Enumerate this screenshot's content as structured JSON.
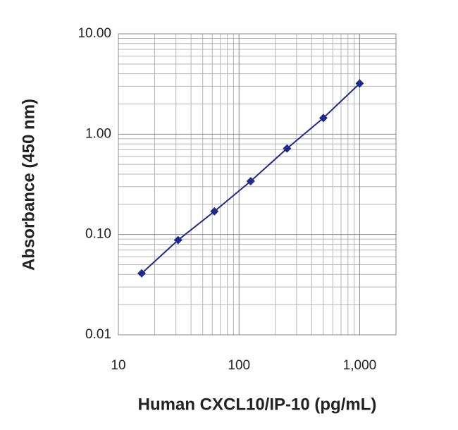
{
  "chart_data": {
    "type": "line",
    "x_label": "Human CXCL10/IP-10 (pg/mL)",
    "y_label": "Absorbance (450 nm)",
    "x": [
      15.6,
      31.25,
      62.5,
      125,
      250,
      500,
      1000
    ],
    "series": [
      {
        "color": "#1f2a8c",
        "values": [
          0.041,
          0.088,
          0.17,
          0.34,
          0.72,
          1.45,
          3.2
        ]
      }
    ],
    "x_log": true,
    "y_log": true,
    "grid": true,
    "minor_grid": true,
    "xlim": [
      10,
      2000
    ],
    "xticks": [
      10,
      100,
      {
        "value": 1000,
        "label": "1,000"
      }
    ],
    "ylim": [
      0.01,
      10
    ],
    "yticks": [
      {
        "value": 0.01,
        "label": "0.01"
      },
      {
        "value": 0.1,
        "label": "0.10"
      },
      {
        "value": 1,
        "label": "1.00"
      },
      {
        "value": 10,
        "label": "10.00"
      }
    ]
  }
}
